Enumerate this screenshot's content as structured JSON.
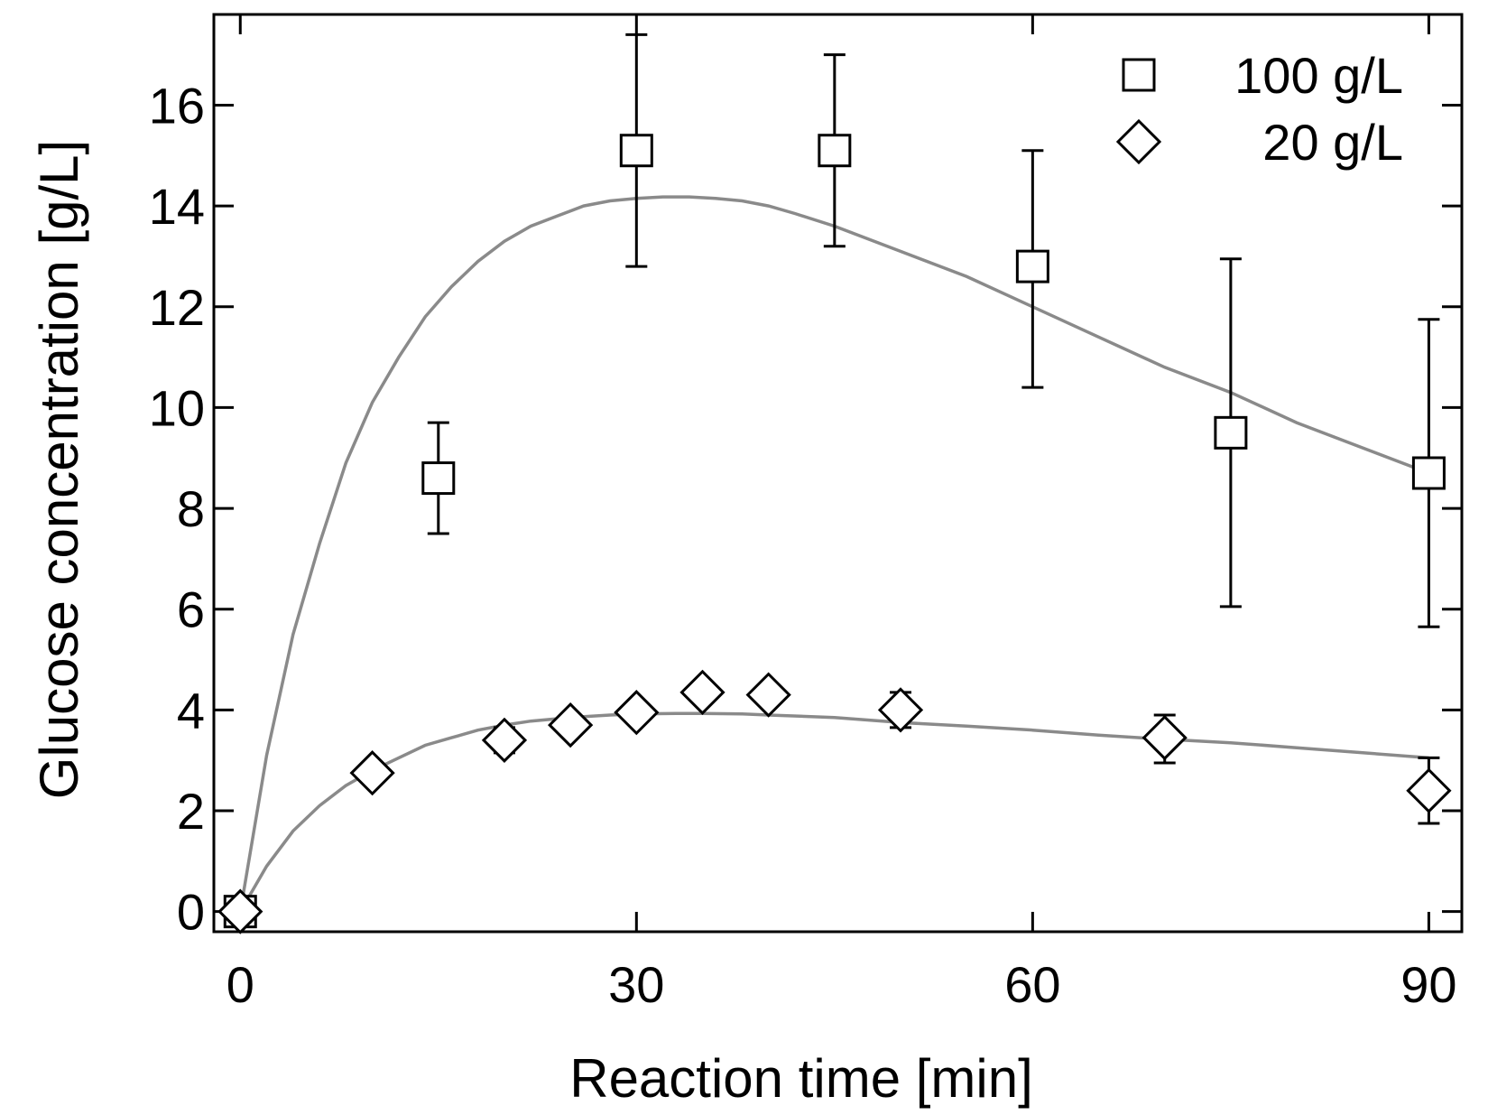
{
  "chart_data": {
    "type": "scatter",
    "xlabel": "Reaction time [min]",
    "ylabel": "Glucose concentration [g/L]",
    "xlim": [
      -2,
      92.5
    ],
    "ylim": [
      -0.4,
      17.8
    ],
    "xticks": [
      0,
      30,
      60,
      90
    ],
    "yticks": [
      0,
      2,
      4,
      6,
      8,
      10,
      12,
      14,
      16
    ],
    "xtick_labels": [
      "0",
      "30",
      "60",
      "90"
    ],
    "ytick_labels": [
      "0",
      "2",
      "4",
      "6",
      "8",
      "10",
      "12",
      "14",
      "16"
    ],
    "legend_position": "top-right",
    "series": [
      {
        "name": "100 g/L",
        "marker": "square",
        "x": [
          0,
          15,
          30,
          45,
          60,
          75,
          90
        ],
        "y": [
          0,
          8.6,
          15.1,
          15.1,
          12.8,
          9.5,
          8.7
        ],
        "err_low": [
          0,
          1.1,
          2.3,
          1.9,
          2.4,
          3.45,
          3.05
        ],
        "err_high": [
          0,
          1.1,
          2.3,
          1.9,
          2.3,
          3.45,
          3.05
        ]
      },
      {
        "name": "20 g/L",
        "marker": "diamond",
        "x": [
          0,
          10,
          20,
          25,
          30,
          35,
          40,
          50,
          70,
          90
        ],
        "y": [
          0,
          2.75,
          3.4,
          3.7,
          3.95,
          4.35,
          4.3,
          4.0,
          3.45,
          2.4
        ],
        "err_low": [
          0,
          0,
          0.25,
          0,
          0,
          0,
          0,
          0.35,
          0.5,
          0.65
        ],
        "err_high": [
          0,
          0,
          0.25,
          0,
          0,
          0,
          0,
          0.35,
          0.45,
          0.65
        ]
      }
    ],
    "fits": [
      {
        "name": "model-fit-100",
        "x": [
          0,
          2,
          4,
          6,
          8,
          10,
          12,
          14,
          16,
          18,
          20,
          22,
          24,
          26,
          28,
          30,
          32,
          34,
          36,
          38,
          40,
          42,
          45,
          50,
          55,
          60,
          65,
          70,
          75,
          80,
          85,
          90
        ],
        "y": [
          0,
          3.1,
          5.5,
          7.3,
          8.9,
          10.1,
          11.0,
          11.8,
          12.4,
          12.9,
          13.3,
          13.6,
          13.8,
          14.0,
          14.1,
          14.15,
          14.18,
          14.18,
          14.15,
          14.1,
          14.0,
          13.85,
          13.6,
          13.1,
          12.6,
          12.0,
          11.4,
          10.8,
          10.3,
          9.7,
          9.2,
          8.7
        ]
      },
      {
        "name": "model-fit-20",
        "x": [
          0,
          2,
          4,
          6,
          8,
          10,
          12,
          14,
          16,
          18,
          20,
          22,
          25,
          28,
          30,
          33,
          35,
          38,
          40,
          45,
          50,
          55,
          60,
          65,
          70,
          75,
          80,
          85,
          90
        ],
        "y": [
          0,
          0.9,
          1.6,
          2.1,
          2.5,
          2.8,
          3.05,
          3.3,
          3.45,
          3.6,
          3.7,
          3.78,
          3.85,
          3.9,
          3.92,
          3.93,
          3.93,
          3.92,
          3.9,
          3.85,
          3.75,
          3.68,
          3.6,
          3.5,
          3.42,
          3.35,
          3.25,
          3.15,
          3.05
        ]
      }
    ]
  }
}
